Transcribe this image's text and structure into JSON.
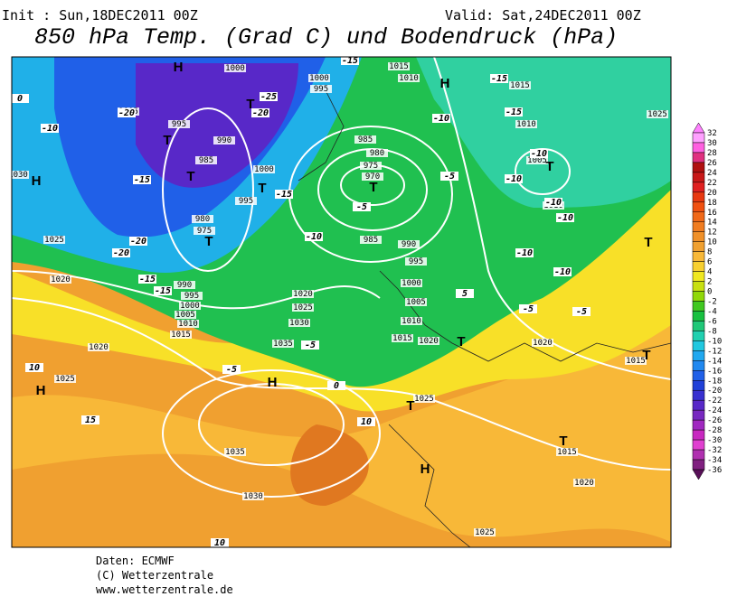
{
  "header": {
    "init": "Init : Sun,18DEC2011 00Z",
    "valid": "Valid: Sat,24DEC2011 00Z",
    "title": "850 hPa Temp. (Grad C) und Bodendruck (hPa)"
  },
  "legend": {
    "labels": [
      32,
      30,
      28,
      26,
      24,
      22,
      20,
      18,
      16,
      14,
      12,
      10,
      8,
      6,
      4,
      2,
      0,
      -2,
      -4,
      -6,
      -8,
      -10,
      -12,
      -14,
      -16,
      -18,
      -20,
      -22,
      -24,
      -26,
      -28,
      -30,
      -32,
      -34,
      -36
    ],
    "colors": [
      "#ff80ff",
      "#ffa0ff",
      "#ff60e0",
      "#e03080",
      "#b01010",
      "#c81818",
      "#e02020",
      "#e83810",
      "#f05010",
      "#f06818",
      "#f07c20",
      "#f09028",
      "#f0a030",
      "#f8b838",
      "#f8d030",
      "#f0e820",
      "#c8e010",
      "#90d808",
      "#40c820",
      "#18c040",
      "#20c878",
      "#20d0b0",
      "#20c8e0",
      "#20a8f0",
      "#2088f0",
      "#2060e8",
      "#2040d8",
      "#3830d0",
      "#5828c8",
      "#7828c0",
      "#a028c0",
      "#c828c0",
      "#e040d0",
      "#b030b0",
      "#802080",
      "#581058"
    ]
  },
  "map": {
    "isobar_labels": [
      "1000",
      "1005",
      "995",
      "990",
      "985",
      "1030",
      "1025",
      "1020",
      "1010",
      "1015",
      "1020",
      "1025",
      "1035",
      "1030",
      "1000",
      "995",
      "1000",
      "995",
      "985",
      "980",
      "975",
      "970",
      "985",
      "990",
      "995",
      "1000",
      "1005",
      "1010",
      "1015",
      "1020",
      "1025",
      "1020",
      "1025",
      "1030",
      "1035",
      "1015",
      "1010",
      "1015",
      "1010",
      "1025",
      "1005",
      "1010",
      "1020",
      "1015",
      "1015",
      "1020",
      "1025",
      "980",
      "975",
      "990",
      "995",
      "1000",
      "1005"
    ],
    "temp_labels": [
      "-10",
      "-15",
      "-20",
      "-20",
      "-15",
      "-15",
      "-20",
      "-20",
      "-25",
      "-15",
      "-10",
      "-5",
      "0",
      "-5",
      "-10",
      "-5",
      "-5",
      "-15",
      "-15",
      "-15",
      "-10",
      "-10",
      "-10",
      "-10",
      "-10",
      "-10",
      "-5",
      "-5",
      "10",
      "15",
      "10",
      "10",
      "5",
      "0"
    ],
    "centers": [
      "H",
      "H",
      "T",
      "T",
      "T",
      "T",
      "T",
      "T",
      "H",
      "H",
      "H",
      "T",
      "T",
      "T",
      "H",
      "T",
      "T",
      "T"
    ]
  },
  "footer": {
    "source": "Daten: ECMWF",
    "copyright": "(C) Wetterzentrale",
    "url": "www.wetterzentrale.de"
  }
}
